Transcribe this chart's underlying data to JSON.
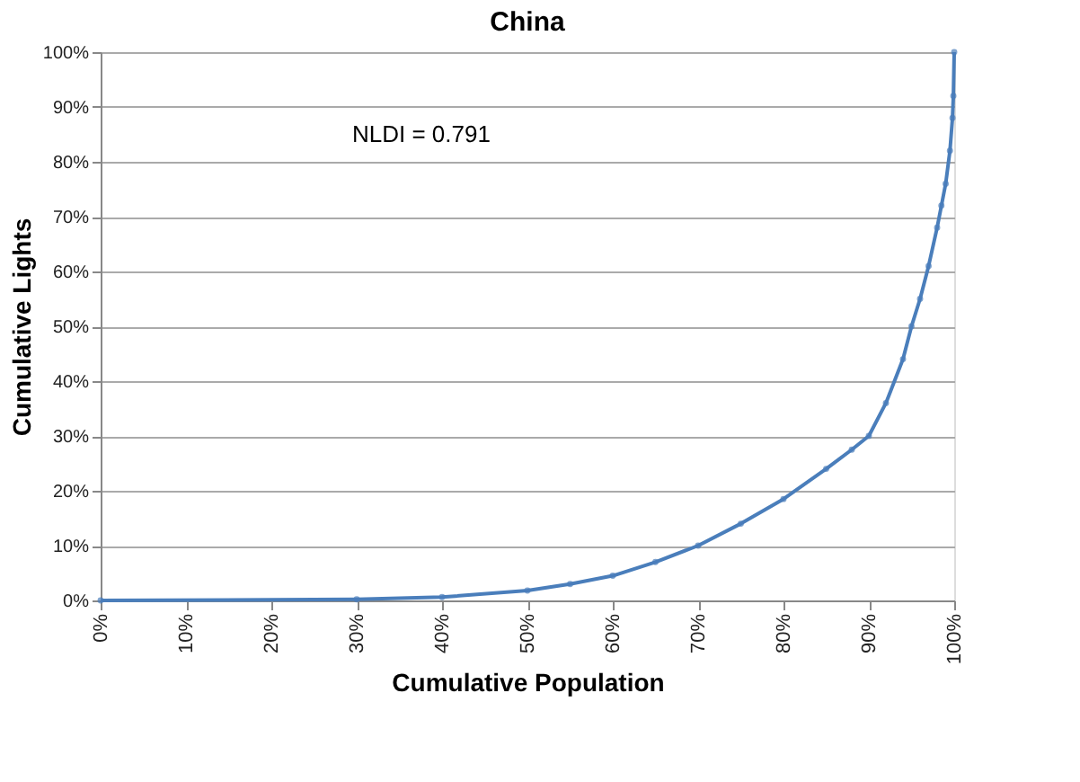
{
  "chart_data": {
    "type": "line",
    "title": "China",
    "xlabel": "Cumulative Population",
    "ylabel": "Cumulative Lights",
    "x": [
      0,
      30,
      40,
      50,
      55,
      60,
      65,
      70,
      75,
      80,
      85,
      88,
      90,
      92,
      94,
      95,
      96,
      97,
      98,
      98.5,
      99,
      99.5,
      99.8,
      99.9,
      100
    ],
    "series": [
      {
        "color": "#4a7ebb",
        "values": [
          0,
          0.2,
          0.6,
          1.8,
          3,
          4.5,
          7,
          10,
          14,
          18.5,
          24,
          27.5,
          30,
          36,
          44,
          50,
          55,
          61,
          68,
          72,
          76,
          82,
          88,
          92,
          100
        ]
      }
    ],
    "xlim": [
      0,
      100
    ],
    "ylim": [
      0,
      100
    ],
    "xticks": [
      {
        "value": 0,
        "label": "0%"
      },
      {
        "value": 10,
        "label": "10%"
      },
      {
        "value": 20,
        "label": "20%"
      },
      {
        "value": 30,
        "label": "30%"
      },
      {
        "value": 40,
        "label": "40%"
      },
      {
        "value": 50,
        "label": "50%"
      },
      {
        "value": 60,
        "label": "60%"
      },
      {
        "value": 70,
        "label": "70%"
      },
      {
        "value": 80,
        "label": "80%"
      },
      {
        "value": 90,
        "label": "90%"
      },
      {
        "value": 100,
        "label": "100%"
      }
    ],
    "yticks": [
      {
        "value": 0,
        "label": "0%"
      },
      {
        "value": 10,
        "label": "10%"
      },
      {
        "value": 20,
        "label": "20%"
      },
      {
        "value": 30,
        "label": "30%"
      },
      {
        "value": 40,
        "label": "40%"
      },
      {
        "value": 50,
        "label": "50%"
      },
      {
        "value": 60,
        "label": "60%"
      },
      {
        "value": 70,
        "label": "70%"
      },
      {
        "value": 80,
        "label": "80%"
      },
      {
        "value": 90,
        "label": "90%"
      },
      {
        "value": 100,
        "label": "100%"
      }
    ],
    "grid": "y",
    "marker": "circle",
    "line_style": "solid",
    "annotations": [
      "NLDI = 0.791"
    ]
  }
}
